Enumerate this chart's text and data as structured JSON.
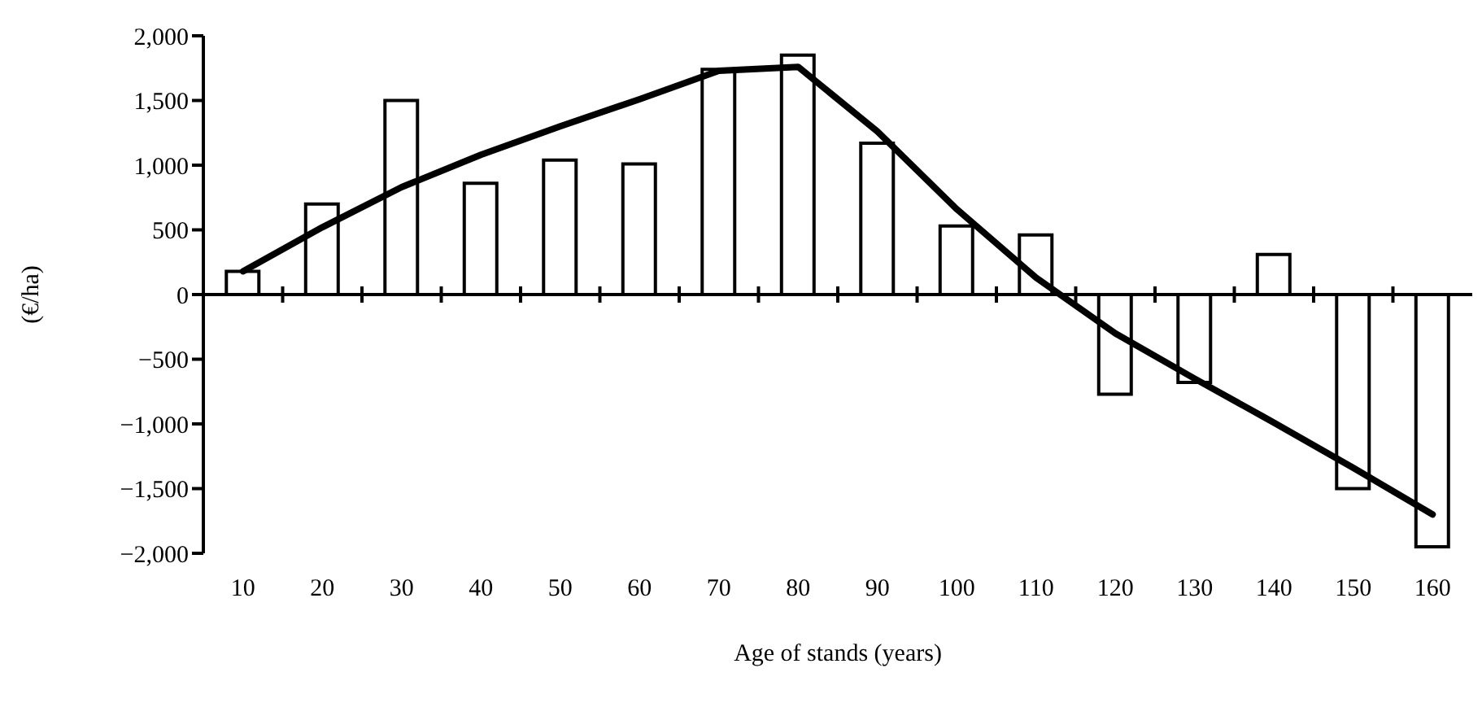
{
  "chart_data": {
    "type": "bar",
    "xlabel": "Age of stands (years)",
    "ylabel": "(€/ha)",
    "categories": [
      "10",
      "20",
      "30",
      "40",
      "50",
      "60",
      "70",
      "80",
      "90",
      "100",
      "110",
      "120",
      "130",
      "140",
      "150",
      "160"
    ],
    "series": [
      {
        "color": "#000000",
        "values": [
          180,
          700,
          1500,
          860,
          1040,
          1010,
          1740,
          1850,
          1170,
          530,
          460,
          -770,
          -680,
          310,
          -1500,
          -1950
        ]
      },
      {
        "type": "line",
        "color": "#000000",
        "values": [
          180,
          520,
          830,
          1080,
          1300,
          1510,
          1730,
          1760,
          1260,
          660,
          130,
          -300,
          -650,
          -990,
          -1340,
          -1700
        ]
      }
    ],
    "ylim": [
      -2000,
      2000
    ],
    "yticks": [
      {
        "value": -2000,
        "label": "−2,000"
      },
      {
        "value": -1500,
        "label": "−1,500"
      },
      {
        "value": -1000,
        "label": "−1,000"
      },
      {
        "value": -500,
        "label": "−500"
      },
      0,
      {
        "value": 500,
        "label": "500"
      },
      {
        "value": 1000,
        "label": "1,000"
      },
      {
        "value": 1500,
        "label": "1,500"
      },
      {
        "value": 2000,
        "label": "2,000"
      }
    ],
    "legend": false,
    "marker": "none",
    "line_style": "solid"
  }
}
